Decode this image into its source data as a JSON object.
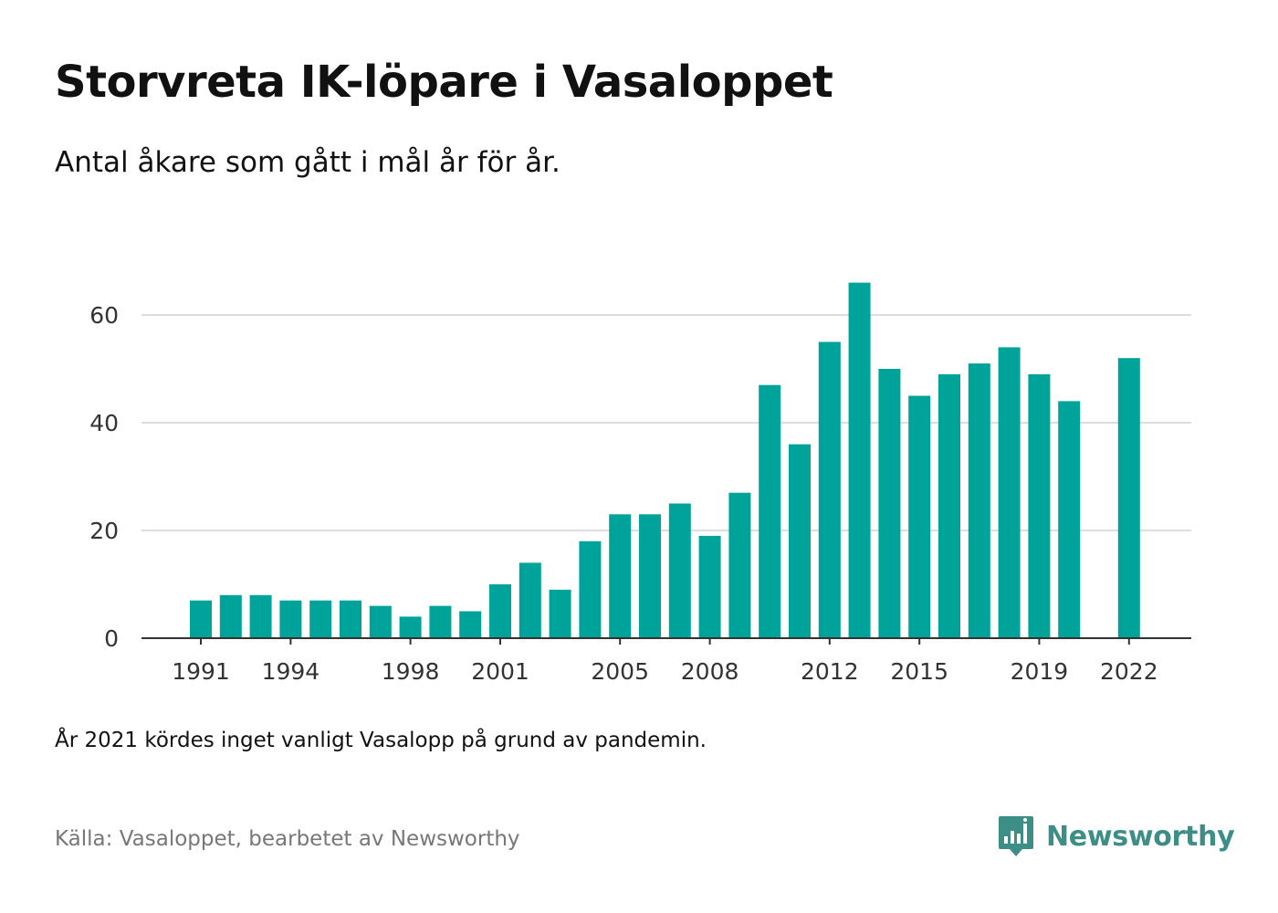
{
  "header": {
    "title": "Storvreta IK-löpare i Vasaloppet",
    "subtitle": "Antal åkare som gått i mål år för år."
  },
  "footer": {
    "note": "År 2021 kördes inget vanligt Vasalopp på grund av pandemin.",
    "source": "Källa: Vasaloppet, bearbetet av Newsworthy",
    "brand": "Newsworthy"
  },
  "colors": {
    "bar": "#00a39a",
    "grid": "#dddddd",
    "axis": "#333333",
    "brand": "#3d8e86"
  },
  "icons": {
    "brand_logo": "newsworthy-logo-icon"
  },
  "chart_data": {
    "type": "bar",
    "title": "Storvreta IK-löpare i Vasaloppet",
    "subtitle": "Antal åkare som gått i mål år för år.",
    "xlabel": "",
    "ylabel": "",
    "x": [
      1991,
      1992,
      1993,
      1994,
      1995,
      1996,
      1997,
      1998,
      1999,
      2000,
      2001,
      2002,
      2003,
      2004,
      2005,
      2006,
      2007,
      2008,
      2009,
      2010,
      2011,
      2012,
      2013,
      2014,
      2015,
      2016,
      2017,
      2018,
      2019,
      2020,
      2021,
      2022
    ],
    "values": [
      7,
      8,
      8,
      7,
      7,
      7,
      6,
      4,
      6,
      5,
      10,
      14,
      9,
      18,
      23,
      23,
      25,
      19,
      27,
      47,
      36,
      55,
      66,
      50,
      45,
      49,
      51,
      54,
      49,
      44,
      null,
      52
    ],
    "x_tick_labels": [
      "1991",
      "1994",
      "1998",
      "2001",
      "2005",
      "2008",
      "2012",
      "2015",
      "2019",
      "2022"
    ],
    "y_ticks": [
      0,
      20,
      40,
      60
    ],
    "ylim": [
      0,
      70
    ],
    "grid": true,
    "legend": "none"
  }
}
